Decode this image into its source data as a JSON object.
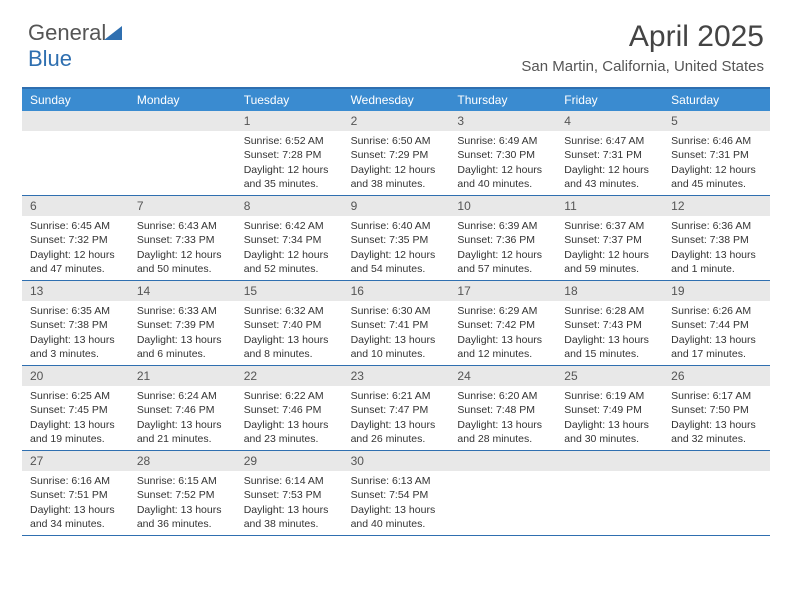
{
  "brand": {
    "part1": "General",
    "part2": "Blue"
  },
  "title": "April 2025",
  "location": "San Martin, California, United States",
  "colors": {
    "header_bg": "#3a8bd0",
    "border": "#2f6fb0",
    "daynum_bg": "#e8e8e8",
    "text": "#333333",
    "muted": "#555555"
  },
  "day_names": [
    "Sunday",
    "Monday",
    "Tuesday",
    "Wednesday",
    "Thursday",
    "Friday",
    "Saturday"
  ],
  "weeks": [
    [
      {
        "n": "",
        "empty": true
      },
      {
        "n": "",
        "empty": true
      },
      {
        "n": "1",
        "sunrise": "Sunrise: 6:52 AM",
        "sunset": "Sunset: 7:28 PM",
        "day1": "Daylight: 12 hours",
        "day2": "and 35 minutes."
      },
      {
        "n": "2",
        "sunrise": "Sunrise: 6:50 AM",
        "sunset": "Sunset: 7:29 PM",
        "day1": "Daylight: 12 hours",
        "day2": "and 38 minutes."
      },
      {
        "n": "3",
        "sunrise": "Sunrise: 6:49 AM",
        "sunset": "Sunset: 7:30 PM",
        "day1": "Daylight: 12 hours",
        "day2": "and 40 minutes."
      },
      {
        "n": "4",
        "sunrise": "Sunrise: 6:47 AM",
        "sunset": "Sunset: 7:31 PM",
        "day1": "Daylight: 12 hours",
        "day2": "and 43 minutes."
      },
      {
        "n": "5",
        "sunrise": "Sunrise: 6:46 AM",
        "sunset": "Sunset: 7:31 PM",
        "day1": "Daylight: 12 hours",
        "day2": "and 45 minutes."
      }
    ],
    [
      {
        "n": "6",
        "sunrise": "Sunrise: 6:45 AM",
        "sunset": "Sunset: 7:32 PM",
        "day1": "Daylight: 12 hours",
        "day2": "and 47 minutes."
      },
      {
        "n": "7",
        "sunrise": "Sunrise: 6:43 AM",
        "sunset": "Sunset: 7:33 PM",
        "day1": "Daylight: 12 hours",
        "day2": "and 50 minutes."
      },
      {
        "n": "8",
        "sunrise": "Sunrise: 6:42 AM",
        "sunset": "Sunset: 7:34 PM",
        "day1": "Daylight: 12 hours",
        "day2": "and 52 minutes."
      },
      {
        "n": "9",
        "sunrise": "Sunrise: 6:40 AM",
        "sunset": "Sunset: 7:35 PM",
        "day1": "Daylight: 12 hours",
        "day2": "and 54 minutes."
      },
      {
        "n": "10",
        "sunrise": "Sunrise: 6:39 AM",
        "sunset": "Sunset: 7:36 PM",
        "day1": "Daylight: 12 hours",
        "day2": "and 57 minutes."
      },
      {
        "n": "11",
        "sunrise": "Sunrise: 6:37 AM",
        "sunset": "Sunset: 7:37 PM",
        "day1": "Daylight: 12 hours",
        "day2": "and 59 minutes."
      },
      {
        "n": "12",
        "sunrise": "Sunrise: 6:36 AM",
        "sunset": "Sunset: 7:38 PM",
        "day1": "Daylight: 13 hours",
        "day2": "and 1 minute."
      }
    ],
    [
      {
        "n": "13",
        "sunrise": "Sunrise: 6:35 AM",
        "sunset": "Sunset: 7:38 PM",
        "day1": "Daylight: 13 hours",
        "day2": "and 3 minutes."
      },
      {
        "n": "14",
        "sunrise": "Sunrise: 6:33 AM",
        "sunset": "Sunset: 7:39 PM",
        "day1": "Daylight: 13 hours",
        "day2": "and 6 minutes."
      },
      {
        "n": "15",
        "sunrise": "Sunrise: 6:32 AM",
        "sunset": "Sunset: 7:40 PM",
        "day1": "Daylight: 13 hours",
        "day2": "and 8 minutes."
      },
      {
        "n": "16",
        "sunrise": "Sunrise: 6:30 AM",
        "sunset": "Sunset: 7:41 PM",
        "day1": "Daylight: 13 hours",
        "day2": "and 10 minutes."
      },
      {
        "n": "17",
        "sunrise": "Sunrise: 6:29 AM",
        "sunset": "Sunset: 7:42 PM",
        "day1": "Daylight: 13 hours",
        "day2": "and 12 minutes."
      },
      {
        "n": "18",
        "sunrise": "Sunrise: 6:28 AM",
        "sunset": "Sunset: 7:43 PM",
        "day1": "Daylight: 13 hours",
        "day2": "and 15 minutes."
      },
      {
        "n": "19",
        "sunrise": "Sunrise: 6:26 AM",
        "sunset": "Sunset: 7:44 PM",
        "day1": "Daylight: 13 hours",
        "day2": "and 17 minutes."
      }
    ],
    [
      {
        "n": "20",
        "sunrise": "Sunrise: 6:25 AM",
        "sunset": "Sunset: 7:45 PM",
        "day1": "Daylight: 13 hours",
        "day2": "and 19 minutes."
      },
      {
        "n": "21",
        "sunrise": "Sunrise: 6:24 AM",
        "sunset": "Sunset: 7:46 PM",
        "day1": "Daylight: 13 hours",
        "day2": "and 21 minutes."
      },
      {
        "n": "22",
        "sunrise": "Sunrise: 6:22 AM",
        "sunset": "Sunset: 7:46 PM",
        "day1": "Daylight: 13 hours",
        "day2": "and 23 minutes."
      },
      {
        "n": "23",
        "sunrise": "Sunrise: 6:21 AM",
        "sunset": "Sunset: 7:47 PM",
        "day1": "Daylight: 13 hours",
        "day2": "and 26 minutes."
      },
      {
        "n": "24",
        "sunrise": "Sunrise: 6:20 AM",
        "sunset": "Sunset: 7:48 PM",
        "day1": "Daylight: 13 hours",
        "day2": "and 28 minutes."
      },
      {
        "n": "25",
        "sunrise": "Sunrise: 6:19 AM",
        "sunset": "Sunset: 7:49 PM",
        "day1": "Daylight: 13 hours",
        "day2": "and 30 minutes."
      },
      {
        "n": "26",
        "sunrise": "Sunrise: 6:17 AM",
        "sunset": "Sunset: 7:50 PM",
        "day1": "Daylight: 13 hours",
        "day2": "and 32 minutes."
      }
    ],
    [
      {
        "n": "27",
        "sunrise": "Sunrise: 6:16 AM",
        "sunset": "Sunset: 7:51 PM",
        "day1": "Daylight: 13 hours",
        "day2": "and 34 minutes."
      },
      {
        "n": "28",
        "sunrise": "Sunrise: 6:15 AM",
        "sunset": "Sunset: 7:52 PM",
        "day1": "Daylight: 13 hours",
        "day2": "and 36 minutes."
      },
      {
        "n": "29",
        "sunrise": "Sunrise: 6:14 AM",
        "sunset": "Sunset: 7:53 PM",
        "day1": "Daylight: 13 hours",
        "day2": "and 38 minutes."
      },
      {
        "n": "30",
        "sunrise": "Sunrise: 6:13 AM",
        "sunset": "Sunset: 7:54 PM",
        "day1": "Daylight: 13 hours",
        "day2": "and 40 minutes."
      },
      {
        "n": "",
        "empty": true
      },
      {
        "n": "",
        "empty": true
      },
      {
        "n": "",
        "empty": true
      }
    ]
  ]
}
